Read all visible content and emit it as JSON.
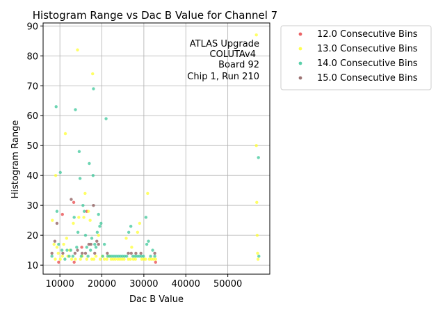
{
  "chart_data": {
    "type": "scatter",
    "title": "Histogram Range vs Dac B Value for Channel 7",
    "xlabel": "Dac B Value",
    "ylabel": "Histogram Range",
    "xlim": [
      6000,
      60000
    ],
    "ylim": [
      7,
      91
    ],
    "xticks": [
      10000,
      20000,
      30000,
      40000,
      50000
    ],
    "yticks": [
      10,
      20,
      30,
      40,
      50,
      60,
      70,
      80,
      90
    ],
    "grid": true,
    "legend_position": "outside-right",
    "annotation": [
      "ATLAS Upgrade",
      "COLUTAv4",
      "Board 92",
      "Chip 1, Run 210"
    ],
    "series": [
      {
        "name": "12.0 Consecutive Bins",
        "color": "#e8474a",
        "points": [
          [
            9700,
            11
          ],
          [
            10600,
            27
          ],
          [
            13300,
            31
          ],
          [
            13400,
            11
          ],
          [
            15200,
            16
          ],
          [
            16400,
            28
          ],
          [
            32800,
            11
          ]
        ]
      },
      {
        "name": "13.0 Consecutive Bins",
        "color": "#ffff33",
        "points": [
          [
            8200,
            25
          ],
          [
            8600,
            17
          ],
          [
            8900,
            12
          ],
          [
            9000,
            40
          ],
          [
            9300,
            16
          ],
          [
            9600,
            14
          ],
          [
            10100,
            12
          ],
          [
            10600,
            13
          ],
          [
            10900,
            17
          ],
          [
            11300,
            54
          ],
          [
            11600,
            19
          ],
          [
            11900,
            13
          ],
          [
            12300,
            15
          ],
          [
            12800,
            12
          ],
          [
            13200,
            24
          ],
          [
            13700,
            12
          ],
          [
            14200,
            82
          ],
          [
            14500,
            26
          ],
          [
            14900,
            12
          ],
          [
            15300,
            13
          ],
          [
            15700,
            26
          ],
          [
            16000,
            34
          ],
          [
            16400,
            12
          ],
          [
            16800,
            28
          ],
          [
            17200,
            25
          ],
          [
            17600,
            12
          ],
          [
            17800,
            74
          ],
          [
            18100,
            12
          ],
          [
            18600,
            13
          ],
          [
            19200,
            20
          ],
          [
            19600,
            12
          ],
          [
            20100,
            13
          ],
          [
            20600,
            12
          ],
          [
            21200,
            12
          ],
          [
            21700,
            13
          ],
          [
            22200,
            12
          ],
          [
            22700,
            12
          ],
          [
            23200,
            12
          ],
          [
            23800,
            12
          ],
          [
            24300,
            12
          ],
          [
            24800,
            12
          ],
          [
            25300,
            12
          ],
          [
            25800,
            19
          ],
          [
            26300,
            12
          ],
          [
            26800,
            12
          ],
          [
            27100,
            16
          ],
          [
            27500,
            12
          ],
          [
            28000,
            12
          ],
          [
            28500,
            21
          ],
          [
            29000,
            24
          ],
          [
            29500,
            12
          ],
          [
            30000,
            12
          ],
          [
            30400,
            12
          ],
          [
            30900,
            34
          ],
          [
            31300,
            12
          ],
          [
            31800,
            12
          ],
          [
            32300,
            12
          ],
          [
            32800,
            12
          ],
          [
            56800,
            87
          ],
          [
            56800,
            50
          ],
          [
            56900,
            31
          ],
          [
            57000,
            20
          ],
          [
            57100,
            14
          ],
          [
            57200,
            12
          ]
        ]
      },
      {
        "name": "14.0 Consecutive Bins",
        "color": "#3cc79a",
        "points": [
          [
            8100,
            13
          ],
          [
            9100,
            63
          ],
          [
            9300,
            28
          ],
          [
            9700,
            17
          ],
          [
            10100,
            41
          ],
          [
            10500,
            15
          ],
          [
            11200,
            12
          ],
          [
            11700,
            15
          ],
          [
            12200,
            13
          ],
          [
            12600,
            15
          ],
          [
            13100,
            13
          ],
          [
            13400,
            26
          ],
          [
            13700,
            62
          ],
          [
            14000,
            16
          ],
          [
            14300,
            21
          ],
          [
            14600,
            48
          ],
          [
            14800,
            39
          ],
          [
            15100,
            13
          ],
          [
            15500,
            30
          ],
          [
            15800,
            28
          ],
          [
            16100,
            20
          ],
          [
            16400,
            16
          ],
          [
            16700,
            13
          ],
          [
            17000,
            44
          ],
          [
            17300,
            15
          ],
          [
            17600,
            19
          ],
          [
            17900,
            40
          ],
          [
            18000,
            69
          ],
          [
            18300,
            17
          ],
          [
            18600,
            16
          ],
          [
            18900,
            21
          ],
          [
            19200,
            27
          ],
          [
            19500,
            23
          ],
          [
            19800,
            24
          ],
          [
            20200,
            13
          ],
          [
            20600,
            17
          ],
          [
            21000,
            59
          ],
          [
            21400,
            13
          ],
          [
            21900,
            13
          ],
          [
            22400,
            13
          ],
          [
            22900,
            13
          ],
          [
            23400,
            13
          ],
          [
            23900,
            13
          ],
          [
            24400,
            13
          ],
          [
            24900,
            13
          ],
          [
            25400,
            13
          ],
          [
            25900,
            13
          ],
          [
            26400,
            21
          ],
          [
            26900,
            23
          ],
          [
            27400,
            13
          ],
          [
            27900,
            13
          ],
          [
            28400,
            13
          ],
          [
            28900,
            13
          ],
          [
            29400,
            13
          ],
          [
            29900,
            13
          ],
          [
            30500,
            26
          ],
          [
            30700,
            17
          ],
          [
            31100,
            18
          ],
          [
            31600,
            13
          ],
          [
            32100,
            15
          ],
          [
            32600,
            13
          ],
          [
            57300,
            46
          ],
          [
            57400,
            13
          ]
        ]
      },
      {
        "name": "15.0 Consecutive Bins",
        "color": "#8c5a5a",
        "points": [
          [
            8100,
            14
          ],
          [
            8800,
            18
          ],
          [
            9300,
            24
          ],
          [
            10700,
            14
          ],
          [
            12700,
            32
          ],
          [
            13600,
            14
          ],
          [
            14200,
            15
          ],
          [
            15300,
            14
          ],
          [
            16100,
            14
          ],
          [
            16900,
            17
          ],
          [
            17400,
            17
          ],
          [
            18000,
            30
          ],
          [
            18300,
            14
          ],
          [
            18800,
            18
          ],
          [
            19200,
            17
          ],
          [
            21300,
            14
          ],
          [
            26300,
            14
          ],
          [
            27000,
            14
          ],
          [
            28100,
            14
          ],
          [
            29300,
            14
          ],
          [
            32600,
            14
          ]
        ]
      }
    ]
  }
}
